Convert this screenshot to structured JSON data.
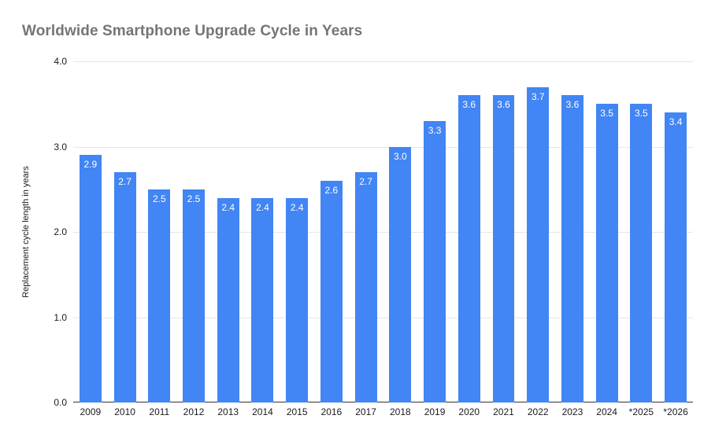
{
  "chart_data": {
    "type": "bar",
    "title": "Worldwide Smartphone Upgrade Cycle in Years",
    "xlabel": "",
    "ylabel": "Replacement cycle length in years",
    "categories": [
      "2009",
      "2010",
      "2011",
      "2012",
      "2013",
      "2014",
      "2015",
      "2016",
      "2017",
      "2018",
      "2019",
      "2020",
      "2021",
      "2022",
      "2023",
      "2024",
      "*2025",
      "*2026"
    ],
    "values": [
      2.9,
      2.7,
      2.5,
      2.5,
      2.4,
      2.4,
      2.4,
      2.6,
      2.7,
      3.0,
      3.3,
      3.6,
      3.6,
      3.7,
      3.6,
      3.5,
      3.5,
      3.4
    ],
    "bar_labels": [
      "2.9",
      "2.7",
      "2.5",
      "2.5",
      "2.4",
      "2.4",
      "2.4",
      "2.6",
      "2.7",
      "3.0",
      "3.3",
      "3.6",
      "3.6",
      "3.7",
      "3.6",
      "3.5",
      "3.5",
      "3.4"
    ],
    "ylim": [
      0,
      4
    ],
    "yticks": [
      0,
      1,
      2,
      3,
      4
    ],
    "ytick_labels": [
      "0.0",
      "1.0",
      "2.0",
      "3.0",
      "4.0"
    ],
    "grid": "horizontal",
    "legend": "none",
    "colors": {
      "bar": "#4285f4",
      "bar_label": "#ffffff",
      "title": "#757575",
      "axis_text": "#1a1a1a",
      "gridline": "#e6e6e6",
      "baseline": "#333333",
      "background": "#ffffff"
    }
  }
}
